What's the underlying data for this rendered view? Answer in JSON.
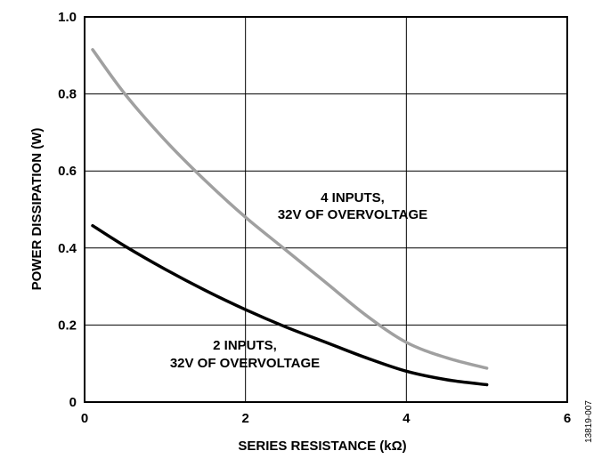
{
  "figure_id": "13819-007",
  "chart_data": {
    "type": "line",
    "xlabel": "SERIES RESISTANCE (kΩ)",
    "ylabel": "POWER DISSIPATION (W)",
    "xlim": [
      0,
      6
    ],
    "ylim": [
      0,
      1.0
    ],
    "x_ticks": [
      "0",
      "2",
      "4",
      "6"
    ],
    "y_ticks": [
      "0",
      "0.2",
      "0.4",
      "0.6",
      "0.8",
      "1.0"
    ],
    "grid": true,
    "series": [
      {
        "name": "4 INPUTS, 32V OF OVERVOLTAGE",
        "color": "#a0a0a0",
        "x": [
          0.1,
          0.5,
          1.0,
          1.5,
          2.0,
          2.5,
          3.0,
          3.5,
          4.0,
          4.5,
          5.0
        ],
        "y": [
          0.915,
          0.8,
          0.68,
          0.575,
          0.48,
          0.395,
          0.31,
          0.225,
          0.155,
          0.115,
          0.088
        ]
      },
      {
        "name": "2 INPUTS, 32V OF OVERVOLTAGE",
        "color": "#000000",
        "x": [
          0.1,
          0.5,
          1.0,
          1.5,
          2.0,
          2.5,
          3.0,
          3.5,
          4.0,
          4.5,
          5.0
        ],
        "y": [
          0.458,
          0.405,
          0.345,
          0.29,
          0.24,
          0.195,
          0.155,
          0.115,
          0.08,
          0.058,
          0.045
        ]
      }
    ],
    "annotations": [
      {
        "lines": [
          "4 INPUTS,",
          "32V OF OVERVOLTAGE"
        ],
        "series": 0
      },
      {
        "lines": [
          "2 INPUTS,",
          "32V OF OVERVOLTAGE"
        ],
        "series": 1
      }
    ]
  }
}
